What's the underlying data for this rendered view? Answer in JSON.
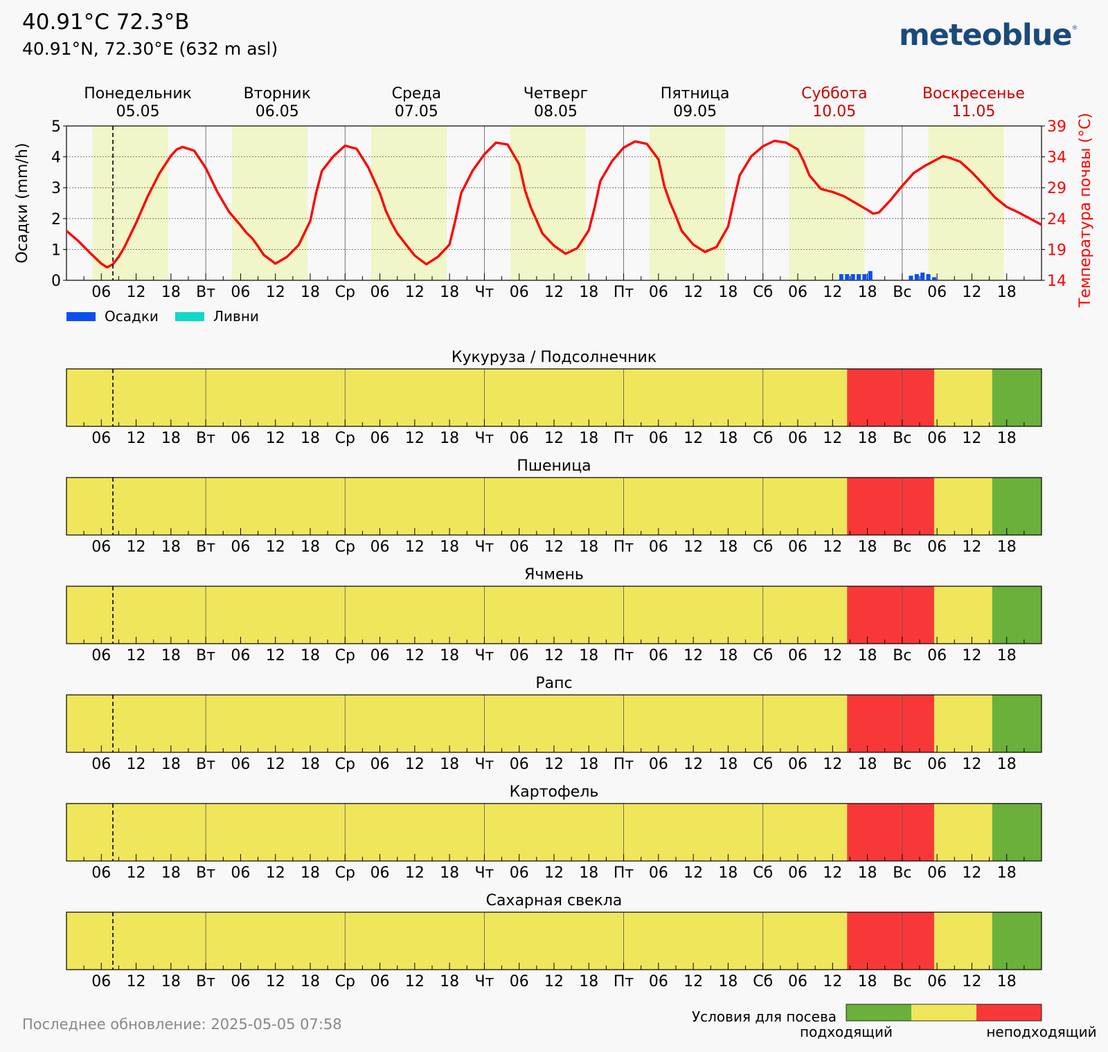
{
  "header": {
    "title": "40.91°C 72.3°B",
    "subtitle": "40.91°N, 72.30°E (632 m asl)",
    "logo": "meteoblue",
    "logo_mark": "®"
  },
  "footer": {
    "last_update": "Последнее обновление: 2025-05-05 07:58"
  },
  "colors": {
    "day_shade": "#f0f6c8",
    "temperature": "#ff0000",
    "precip": "#0a4ff0",
    "showers": "#10d8c8",
    "weekend": "#cc0000",
    "suitable": "#6ab03a",
    "neutral": "#f0e65c",
    "unsuitable": "#f83838"
  },
  "chart_data": [
    {
      "type": "line",
      "days": [
        {
          "name": "Понедельник",
          "date": "05.05",
          "weekend": false
        },
        {
          "name": "Вторник",
          "date": "06.05",
          "weekend": false
        },
        {
          "name": "Среда",
          "date": "07.05",
          "weekend": false
        },
        {
          "name": "Четверг",
          "date": "08.05",
          "weekend": false
        },
        {
          "name": "Пятница",
          "date": "09.05",
          "weekend": false
        },
        {
          "name": "Суббота",
          "date": "10.05",
          "weekend": true
        },
        {
          "name": "Воскресенье",
          "date": "11.05",
          "weekend": true
        }
      ],
      "x_tick_labels": [
        "",
        "06",
        "12",
        "18",
        "Вт",
        "06",
        "12",
        "18",
        "Ср",
        "06",
        "12",
        "18",
        "Чт",
        "06",
        "12",
        "18",
        "Пт",
        "06",
        "12",
        "18",
        "Сб",
        "06",
        "12",
        "18",
        "Вс",
        "06",
        "12",
        "18"
      ],
      "xlim_hours": [
        0,
        168
      ],
      "current_time_hour": 8,
      "ylabel_left": "Осадки (mm/h)",
      "ylim_left": [
        0,
        5
      ],
      "yticks_left": [
        0,
        1,
        2,
        3,
        4,
        5
      ],
      "ylabel_right": "Температура почвы (°C)",
      "ylim_right": [
        14,
        39
      ],
      "yticks_right": [
        14,
        19,
        24,
        29,
        34,
        39
      ],
      "grid": true,
      "legend": [
        {
          "name": "Осадки",
          "color": "#0a4ff0"
        },
        {
          "name": "Ливни",
          "color": "#10d8c8"
        }
      ],
      "soil_temperature": {
        "x": [
          0,
          2,
          4,
          6,
          7,
          8,
          9,
          10,
          12,
          14,
          16,
          18,
          19,
          20,
          22,
          24,
          26,
          28,
          30,
          31,
          32,
          33,
          34,
          36,
          38,
          40,
          42,
          43,
          44,
          46,
          48,
          50,
          52,
          54,
          55,
          56,
          57,
          58,
          60,
          62,
          64,
          66,
          67,
          68,
          70,
          72,
          74,
          76,
          78,
          79,
          80,
          81,
          82,
          84,
          86,
          88,
          90,
          91,
          92,
          94,
          96,
          98,
          100,
          102,
          103,
          104,
          105,
          106,
          108,
          110,
          112,
          114,
          115,
          116,
          118,
          120,
          122,
          124,
          126,
          127,
          128,
          130,
          132,
          134,
          136,
          138,
          139,
          140,
          142,
          144,
          146,
          148,
          150,
          151,
          152,
          154,
          156,
          158,
          160,
          162,
          164,
          166,
          168
        ],
        "y": [
          22.0,
          20.4,
          18.5,
          16.7,
          16.1,
          16.6,
          17.8,
          19.4,
          23.3,
          27.6,
          31.3,
          34.2,
          35.2,
          35.6,
          35.0,
          32.2,
          28.3,
          25.1,
          22.9,
          21.7,
          20.8,
          19.5,
          18.1,
          16.7,
          17.8,
          19.7,
          23.6,
          28.1,
          31.7,
          34.1,
          35.8,
          35.3,
          32.3,
          28.1,
          25.3,
          23.3,
          21.6,
          20.4,
          18.0,
          16.6,
          17.8,
          19.8,
          23.7,
          28.1,
          31.8,
          34.4,
          36.3,
          36.0,
          32.8,
          28.6,
          25.8,
          23.7,
          21.6,
          19.6,
          18.3,
          19.2,
          22.1,
          25.8,
          30.1,
          33.3,
          35.5,
          36.5,
          36.1,
          33.6,
          29.3,
          26.6,
          24.4,
          22.0,
          19.8,
          18.6,
          19.4,
          22.7,
          27.0,
          31.0,
          34.1,
          35.7,
          36.6,
          36.3,
          35.2,
          33.3,
          31.0,
          28.8,
          28.3,
          27.6,
          26.5,
          25.4,
          24.8,
          25.0,
          27.0,
          29.3,
          31.4,
          32.6,
          33.6,
          34.1,
          33.9,
          33.2,
          31.5,
          29.5,
          27.4,
          25.9,
          25.0,
          24.0,
          23.0
        ]
      },
      "precipitation_bars": [
        {
          "hour": 133.5,
          "value": 0.2
        },
        {
          "hour": 134.5,
          "value": 0.2
        },
        {
          "hour": 135.5,
          "value": 0.2
        },
        {
          "hour": 136.5,
          "value": 0.2
        },
        {
          "hour": 137.5,
          "value": 0.2
        },
        {
          "hour": 138.5,
          "value": 0.3
        },
        {
          "hour": 145.5,
          "value": 0.15
        },
        {
          "hour": 146.5,
          "value": 0.2
        },
        {
          "hour": 147.5,
          "value": 0.25
        },
        {
          "hour": 148.5,
          "value": 0.2
        },
        {
          "hour": 149.5,
          "value": 0.1
        }
      ]
    },
    {
      "type": "heatmap",
      "legend_title": "Условия для посева",
      "legend_labels": {
        "suitable": "подходящий",
        "unsuitable": "неподходящий"
      },
      "x_tick_labels": [
        "",
        "06",
        "12",
        "18",
        "Вт",
        "06",
        "12",
        "18",
        "Ср",
        "06",
        "12",
        "18",
        "Чт",
        "06",
        "12",
        "18",
        "Пт",
        "06",
        "12",
        "18",
        "Сб",
        "06",
        "12",
        "18",
        "Вс",
        "06",
        "12",
        "18"
      ],
      "crops": [
        {
          "name": "Кукуруза / Подсолнечник",
          "segments": [
            {
              "from": 0,
              "to": 134.5,
              "status": "neutral"
            },
            {
              "from": 134.5,
              "to": 149.5,
              "status": "unsuitable"
            },
            {
              "from": 149.5,
              "to": 159.5,
              "status": "neutral"
            },
            {
              "from": 159.5,
              "to": 168,
              "status": "suitable"
            }
          ]
        },
        {
          "name": "Пшеница",
          "segments": [
            {
              "from": 0,
              "to": 134.5,
              "status": "neutral"
            },
            {
              "from": 134.5,
              "to": 149.5,
              "status": "unsuitable"
            },
            {
              "from": 149.5,
              "to": 159.5,
              "status": "neutral"
            },
            {
              "from": 159.5,
              "to": 168,
              "status": "suitable"
            }
          ]
        },
        {
          "name": "Ячмень",
          "segments": [
            {
              "from": 0,
              "to": 134.5,
              "status": "neutral"
            },
            {
              "from": 134.5,
              "to": 149.5,
              "status": "unsuitable"
            },
            {
              "from": 149.5,
              "to": 159.5,
              "status": "neutral"
            },
            {
              "from": 159.5,
              "to": 168,
              "status": "suitable"
            }
          ]
        },
        {
          "name": "Рапс",
          "segments": [
            {
              "from": 0,
              "to": 134.5,
              "status": "neutral"
            },
            {
              "from": 134.5,
              "to": 149.5,
              "status": "unsuitable"
            },
            {
              "from": 149.5,
              "to": 159.5,
              "status": "neutral"
            },
            {
              "from": 159.5,
              "to": 168,
              "status": "suitable"
            }
          ]
        },
        {
          "name": "Картофель",
          "segments": [
            {
              "from": 0,
              "to": 134.5,
              "status": "neutral"
            },
            {
              "from": 134.5,
              "to": 149.5,
              "status": "unsuitable"
            },
            {
              "from": 149.5,
              "to": 159.5,
              "status": "neutral"
            },
            {
              "from": 159.5,
              "to": 168,
              "status": "suitable"
            }
          ]
        },
        {
          "name": "Сахарная свекла",
          "segments": [
            {
              "from": 0,
              "to": 134.5,
              "status": "neutral"
            },
            {
              "from": 134.5,
              "to": 149.5,
              "status": "unsuitable"
            },
            {
              "from": 149.5,
              "to": 159.5,
              "status": "neutral"
            },
            {
              "from": 159.5,
              "to": 168,
              "status": "suitable"
            }
          ]
        }
      ]
    }
  ]
}
